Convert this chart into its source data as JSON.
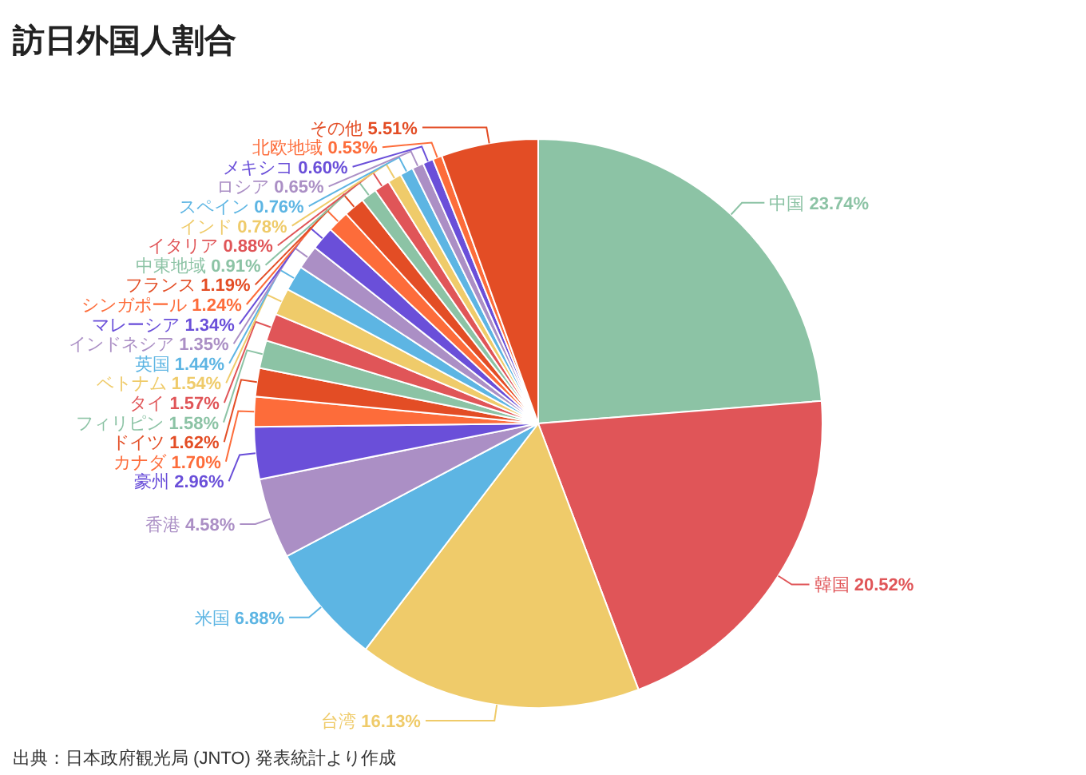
{
  "chart_data": {
    "type": "pie",
    "title": "訪日外国人割合",
    "categories": [
      "中国",
      "韓国",
      "台湾",
      "米国",
      "香港",
      "豪州",
      "カナダ",
      "ドイツ",
      "フィリピン",
      "タイ",
      "ベトナム",
      "英国",
      "インドネシア",
      "マレーシア",
      "シンガポール",
      "フランス",
      "中東地域",
      "イタリア",
      "インド",
      "スペイン",
      "ロシア",
      "メキシコ",
      "北欧地域",
      "その他"
    ],
    "values": [
      23.74,
      20.52,
      16.13,
      6.88,
      4.58,
      2.96,
      1.7,
      1.62,
      1.58,
      1.57,
      1.54,
      1.44,
      1.35,
      1.34,
      1.24,
      1.19,
      0.91,
      0.88,
      0.78,
      0.76,
      0.65,
      0.6,
      0.53,
      5.51
    ],
    "value_labels": [
      "23.74%",
      "20.52%",
      "16.13%",
      "6.88%",
      "4.58%",
      "2.96%",
      "1.70%",
      "1.62%",
      "1.58%",
      "1.57%",
      "1.54%",
      "1.44%",
      "1.35%",
      "1.34%",
      "1.24%",
      "1.19%",
      "0.91%",
      "0.88%",
      "0.78%",
      "0.76%",
      "0.65%",
      "0.60%",
      "0.53%",
      "5.51%"
    ],
    "colors": [
      "#8cc3a5",
      "#e05558",
      "#efcb6a",
      "#5db5e3",
      "#ab8fc5",
      "#6a4fd9",
      "#fd6c3a",
      "#e34d25",
      "#8cc3a5",
      "#e05558",
      "#efcb6a",
      "#5db5e3",
      "#ab8fc5",
      "#6a4fd9",
      "#fd6c3a",
      "#e34d25",
      "#8cc3a5",
      "#e05558",
      "#efcb6a",
      "#5db5e3",
      "#ab8fc5",
      "#6a4fd9",
      "#fd6c3a",
      "#e34d25"
    ],
    "annotations": [
      "出典：日本政府観光局 (JNTO) 発表統計より作成"
    ]
  }
}
